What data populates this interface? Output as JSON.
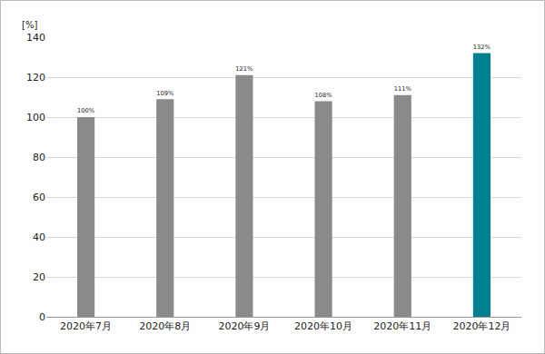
{
  "chart_data": {
    "type": "bar",
    "ylabel": "[%]",
    "categories": [
      "2020年7月",
      "2020年8月",
      "2020年9月",
      "2020年10月",
      "2020年11月",
      "2020年12月"
    ],
    "values": [
      100,
      109,
      121,
      108,
      111,
      132
    ],
    "value_labels": [
      "100%",
      "109%",
      "121%",
      "108%",
      "111%",
      "132%"
    ],
    "colors": [
      "#8a8a8a",
      "#8a8a8a",
      "#8a8a8a",
      "#8a8a8a",
      "#8a8a8a",
      "#007f8e"
    ],
    "ylim": [
      0,
      140
    ],
    "yticks": [
      0,
      20,
      40,
      60,
      80,
      100,
      120,
      140
    ],
    "grid": true,
    "data_labels": true
  }
}
